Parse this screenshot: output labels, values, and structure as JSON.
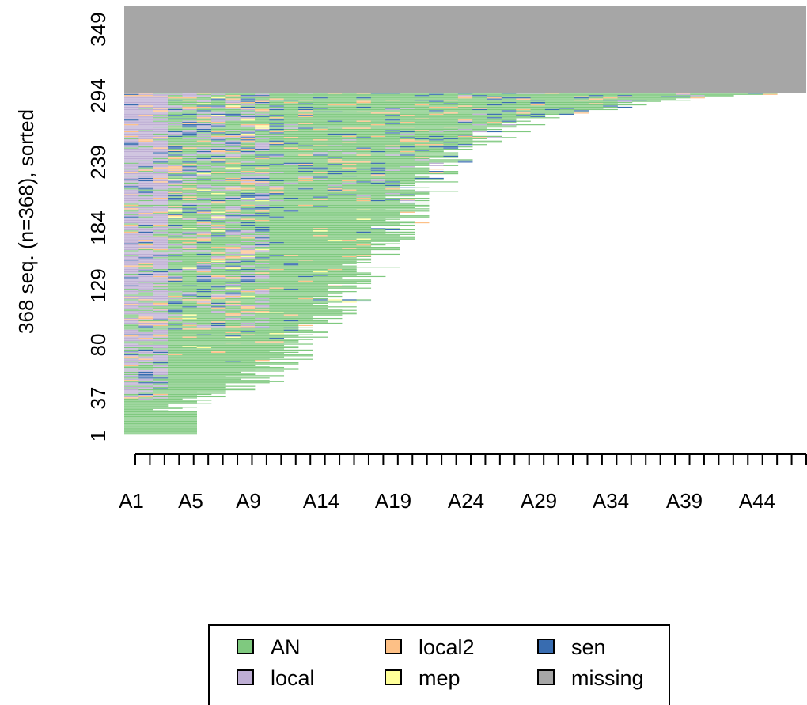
{
  "chart_data": {
    "type": "sequence_index_plot",
    "ylabel": "368 seq. (n=368), sorted",
    "n_sequences": 368,
    "y_ticks": [
      "1",
      "37",
      "80",
      "129",
      "184",
      "239",
      "294",
      "349"
    ],
    "x_tick_labels": [
      "A1",
      "A5",
      "A9",
      "A14",
      "A19",
      "A24",
      "A29",
      "A34",
      "A39",
      "A44"
    ],
    "x_positions": 47,
    "missing_from_row": 294,
    "legend_position": "bottom",
    "states": [
      {
        "name": "AN",
        "color": "#7FC97F"
      },
      {
        "name": "local",
        "color": "#BEAED4"
      },
      {
        "name": "local2",
        "color": "#FDC086"
      },
      {
        "name": "mep",
        "color": "#FFFF99"
      },
      {
        "name": "sen",
        "color": "#386CB0"
      },
      {
        "name": "missing",
        "color": "#A6A6A6"
      }
    ]
  }
}
